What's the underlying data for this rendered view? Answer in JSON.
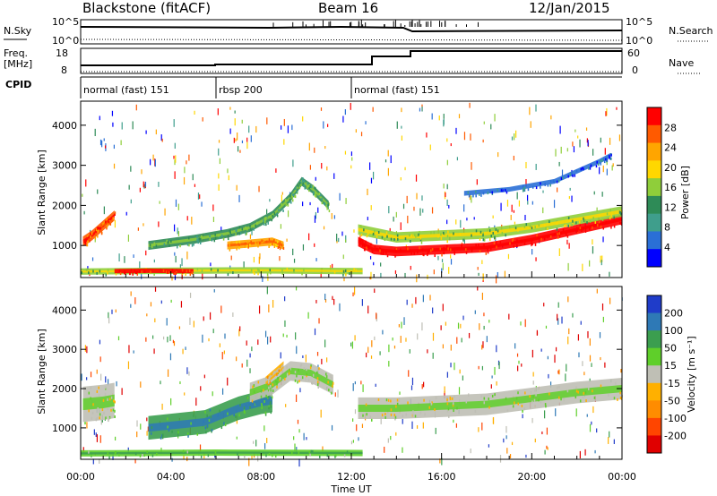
{
  "header": {
    "station": "Blackstone (fitACF)",
    "beam": "Beam 16",
    "date": "12/Jan/2015"
  },
  "side_labels": {
    "nsky": "N.Sky",
    "freq_line1": "Freq.",
    "freq_line2": "[MHz]",
    "cpid": "CPID",
    "nsearch": "N.Search",
    "nave": "Nave"
  },
  "nsky_scale": {
    "top": "10^5",
    "bottom": "10^0"
  },
  "freq_scale": {
    "top": "18",
    "bottom": "8"
  },
  "nave_scale": {
    "top": "60",
    "bottom": "0"
  },
  "cpid_segments": [
    {
      "label": "normal (fast) 151",
      "start_hour": 0
    },
    {
      "label": "rbsp 200",
      "start_hour": 6
    },
    {
      "label": "normal (fast) 151",
      "start_hour": 12
    }
  ],
  "x_axis": {
    "label": "Time UT",
    "ticks": [
      "00:00",
      "04:00",
      "08:00",
      "12:00",
      "16:00",
      "20:00",
      "00:00"
    ],
    "range_hours": [
      0,
      24
    ]
  },
  "power_panel": {
    "ylabel": "Slant Range [km]",
    "yticks": [
      "1000",
      "2000",
      "3000",
      "4000"
    ],
    "colorbar_label": "Power [dB]",
    "colorbar_ticks": [
      "28",
      "24",
      "20",
      "16",
      "12",
      "8",
      "4"
    ],
    "colors": [
      "#0000ff",
      "#2a6fd6",
      "#3f9e8c",
      "#2e8b57",
      "#8fce3a",
      "#ffd700",
      "#ffa500",
      "#ff5a00",
      "#ff0000"
    ]
  },
  "velocity_panel": {
    "ylabel": "Slant Range [km]",
    "yticks": [
      "1000",
      "2000",
      "3000",
      "4000"
    ],
    "colorbar_label": "Velocity [m s⁻¹]",
    "colorbar_ticks": [
      "200",
      "100",
      "50",
      "15",
      "-15",
      "-50",
      "-100",
      "-200"
    ],
    "colors": [
      "#1f3cc9",
      "#2e79b6",
      "#3b9e4f",
      "#5fcf2a",
      "#bfbfb5",
      "#ffb000",
      "#ff8c00",
      "#ff4500",
      "#e00000"
    ]
  },
  "chart_data": {
    "type": "heatmap",
    "x_unit": "hours UT",
    "y_unit": "km",
    "ylim": [
      200,
      4600
    ],
    "xlim": [
      0,
      24
    ],
    "power_bands": [
      {
        "start_h": 0.1,
        "end_h": 1.5,
        "path": [
          [
            0.1,
            1100
          ],
          [
            0.5,
            1250
          ],
          [
            1.0,
            1500
          ],
          [
            1.5,
            1750
          ]
        ],
        "width_km": 250,
        "level": 7
      },
      {
        "start_h": 3.0,
        "end_h": 11.0,
        "path": [
          [
            3.0,
            1000
          ],
          [
            5.0,
            1150
          ],
          [
            6.5,
            1300
          ],
          [
            7.5,
            1450
          ],
          [
            8.5,
            1750
          ],
          [
            9.3,
            2200
          ],
          [
            9.8,
            2600
          ],
          [
            10.3,
            2400
          ],
          [
            11.0,
            2000
          ]
        ],
        "width_km": 220,
        "level": 3
      },
      {
        "start_h": 6.5,
        "end_h": 9.0,
        "path": [
          [
            6.5,
            1000
          ],
          [
            7.5,
            1050
          ],
          [
            8.5,
            1100
          ],
          [
            9.0,
            1000
          ]
        ],
        "width_km": 200,
        "level": 6
      },
      {
        "start_h": 12.3,
        "end_h": 24.0,
        "path": [
          [
            12.3,
            1100
          ],
          [
            13.0,
            900
          ],
          [
            14.0,
            850
          ],
          [
            16.0,
            900
          ],
          [
            18.0,
            950
          ],
          [
            20.0,
            1150
          ],
          [
            22.0,
            1400
          ],
          [
            24.0,
            1650
          ]
        ],
        "width_km": 240,
        "level": 8
      },
      {
        "start_h": 12.3,
        "end_h": 24.0,
        "path": [
          [
            12.3,
            1400
          ],
          [
            14.0,
            1200
          ],
          [
            16.0,
            1250
          ],
          [
            18.0,
            1300
          ],
          [
            20.0,
            1450
          ],
          [
            22.0,
            1650
          ],
          [
            24.0,
            1850
          ]
        ],
        "width_km": 260,
        "level": 4
      },
      {
        "start_h": 17.0,
        "end_h": 23.5,
        "path": [
          [
            17.0,
            2300
          ],
          [
            19.0,
            2400
          ],
          [
            21.0,
            2600
          ],
          [
            23.0,
            3100
          ],
          [
            23.5,
            3250
          ]
        ],
        "width_km": 120,
        "level": 1
      },
      {
        "start_h": 0.0,
        "end_h": 12.5,
        "path": [
          [
            0.0,
            350
          ],
          [
            4.0,
            370
          ],
          [
            8.0,
            380
          ],
          [
            12.5,
            360
          ]
        ],
        "width_km": 160,
        "level": 4
      },
      {
        "start_h": 1.5,
        "end_h": 5.0,
        "path": [
          [
            1.5,
            360
          ],
          [
            3.0,
            370
          ],
          [
            5.0,
            360
          ]
        ],
        "width_km": 110,
        "level": 8
      }
    ],
    "velocity_regions": [
      {
        "start_h": 0.1,
        "end_h": 1.5,
        "path": [
          [
            0.1,
            1600
          ],
          [
            1.0,
            1650
          ],
          [
            1.5,
            1700
          ]
        ],
        "width_km": 900,
        "level": 4
      },
      {
        "start_h": 3.0,
        "end_h": 8.5,
        "path": [
          [
            3.0,
            1000
          ],
          [
            5.5,
            1150
          ],
          [
            7.0,
            1500
          ],
          [
            8.0,
            1650
          ],
          [
            8.5,
            1700
          ]
        ],
        "width_km": 600,
        "level": 6
      },
      {
        "start_h": 7.5,
        "end_h": 11.2,
        "path": [
          [
            7.5,
            1900
          ],
          [
            8.5,
            2100
          ],
          [
            9.3,
            2450
          ],
          [
            10.2,
            2400
          ],
          [
            11.2,
            2100
          ]
        ],
        "width_km": 500,
        "level": 4
      },
      {
        "start_h": 8.2,
        "end_h": 9.3,
        "path": [
          [
            8.2,
            2200
          ],
          [
            9.0,
            2600
          ]
        ],
        "width_km": 200,
        "level": 3
      },
      {
        "start_h": 12.3,
        "end_h": 24.0,
        "path": [
          [
            12.3,
            1500
          ],
          [
            14.0,
            1500
          ],
          [
            16.0,
            1550
          ],
          [
            18.0,
            1600
          ],
          [
            20.0,
            1750
          ],
          [
            22.0,
            1900
          ],
          [
            24.0,
            2000
          ]
        ],
        "width_km": 550,
        "level": 4
      },
      {
        "start_h": 0.0,
        "end_h": 12.5,
        "path": [
          [
            0.0,
            350
          ],
          [
            6.0,
            370
          ],
          [
            12.5,
            360
          ]
        ],
        "width_km": 160,
        "level": 5
      }
    ]
  }
}
